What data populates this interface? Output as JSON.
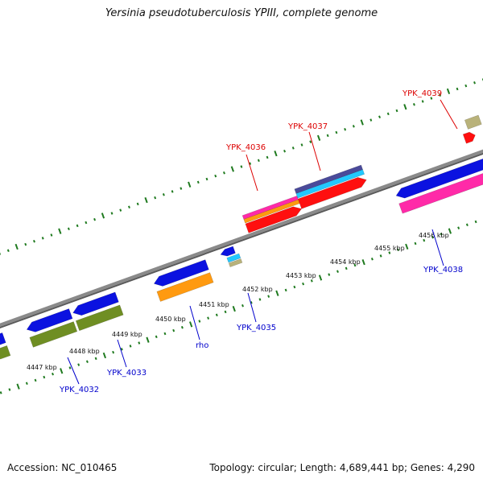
{
  "title": "Yersinia pseudotuberculosis YPIII, complete genome",
  "footer": {
    "accession": "Accession: NC_010465",
    "summary": "Topology: circular; Length: 4,689,441 bp; Genes: 4,290"
  },
  "colors": {
    "backbone": "#8a8a8a",
    "tick": "#1f7a1f",
    "label_plus": "#dd0000",
    "label_minus": "#0000cc",
    "blue": "#0b12e0",
    "olive": "#6f8e23",
    "orange": "#ff9a10",
    "red": "#ff0f0f",
    "pink": "#ff2aa8",
    "navy": "#4a4a9a",
    "cyan": "#22c8ff",
    "khaki": "#b9b27a"
  },
  "kbp_labels": [
    "4447 kbp",
    "4448 kbp",
    "4449 kbp",
    "4450 kbp",
    "4451 kbp",
    "4452 kbp",
    "4453 kbp",
    "4454 kbp",
    "4455 kbp",
    "4456 kbp"
  ],
  "genes": [
    {
      "name": "YPK_4032",
      "strand": "minus"
    },
    {
      "name": "YPK_4033",
      "strand": "minus"
    },
    {
      "name": "rho",
      "strand": "minus"
    },
    {
      "name": "YPK_4035",
      "strand": "minus"
    },
    {
      "name": "YPK_4036",
      "strand": "plus"
    },
    {
      "name": "YPK_4037",
      "strand": "plus"
    },
    {
      "name": "YPK_4038",
      "strand": "minus"
    },
    {
      "name": "YPK_4039",
      "strand": "plus"
    }
  ]
}
